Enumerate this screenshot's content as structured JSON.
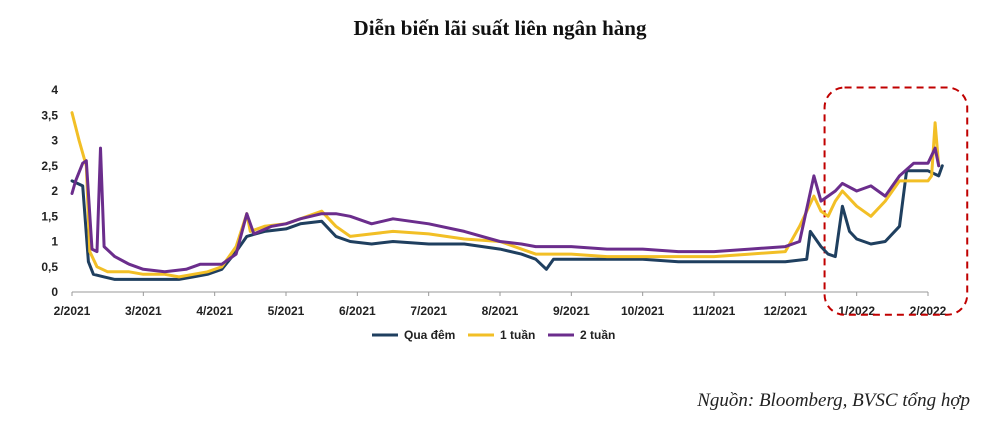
{
  "chart_data": {
    "type": "line",
    "title": "Diễn biến lãi suất liên ngân hàng",
    "xlabel": "",
    "ylabel": "",
    "ylim": [
      0,
      4
    ],
    "yticks": [
      "0",
      "0,5",
      "1",
      "1,5",
      "2",
      "2,5",
      "3",
      "3,5",
      "4"
    ],
    "xticks": [
      "2/2021",
      "3/2021",
      "4/2021",
      "5/2021",
      "6/2021",
      "7/2021",
      "8/2021",
      "9/2021",
      "10/2021",
      "11/2021",
      "12/2021",
      "1/2022",
      "2/2022"
    ],
    "grid": false,
    "legend_position": "bottom",
    "highlight": "dashed red rounded box around 1/2022–2/2022",
    "colors": {
      "Qua đêm": "#1f3f5f",
      "1 tuần": "#f2bf26",
      "2 tuần": "#6b2d8c",
      "highlight": "#c00000"
    },
    "series": [
      {
        "name": "Qua đêm",
        "values": [
          [
            0,
            2.2
          ],
          [
            0.15,
            2.1
          ],
          [
            0.23,
            0.6
          ],
          [
            0.3,
            0.35
          ],
          [
            0.45,
            0.3
          ],
          [
            0.6,
            0.25
          ],
          [
            1.0,
            0.25
          ],
          [
            1.5,
            0.25
          ],
          [
            1.7,
            0.3
          ],
          [
            1.9,
            0.35
          ],
          [
            2.1,
            0.45
          ],
          [
            2.3,
            0.8
          ],
          [
            2.45,
            1.1
          ],
          [
            2.7,
            1.2
          ],
          [
            3.0,
            1.25
          ],
          [
            3.2,
            1.35
          ],
          [
            3.5,
            1.4
          ],
          [
            3.7,
            1.1
          ],
          [
            3.9,
            1.0
          ],
          [
            4.2,
            0.95
          ],
          [
            4.5,
            1.0
          ],
          [
            5.0,
            0.95
          ],
          [
            5.5,
            0.95
          ],
          [
            6.0,
            0.85
          ],
          [
            6.3,
            0.75
          ],
          [
            6.5,
            0.65
          ],
          [
            6.65,
            0.45
          ],
          [
            6.75,
            0.65
          ],
          [
            7.0,
            0.65
          ],
          [
            7.5,
            0.65
          ],
          [
            8.0,
            0.65
          ],
          [
            8.5,
            0.6
          ],
          [
            9.0,
            0.6
          ],
          [
            9.5,
            0.6
          ],
          [
            10.0,
            0.6
          ],
          [
            10.3,
            0.65
          ],
          [
            10.35,
            1.2
          ],
          [
            10.5,
            0.9
          ],
          [
            10.6,
            0.75
          ],
          [
            10.7,
            0.7
          ],
          [
            10.8,
            1.7
          ],
          [
            10.9,
            1.2
          ],
          [
            11.0,
            1.05
          ],
          [
            11.2,
            0.95
          ],
          [
            11.4,
            1.0
          ],
          [
            11.6,
            1.3
          ],
          [
            11.7,
            2.4
          ],
          [
            12.0,
            2.4
          ],
          [
            12.15,
            2.3
          ],
          [
            12.2,
            2.5
          ]
        ]
      },
      {
        "name": "1 tuần",
        "values": [
          [
            0,
            3.55
          ],
          [
            0.1,
            3.0
          ],
          [
            0.2,
            2.5
          ],
          [
            0.25,
            0.8
          ],
          [
            0.35,
            0.5
          ],
          [
            0.5,
            0.4
          ],
          [
            0.8,
            0.4
          ],
          [
            1.0,
            0.35
          ],
          [
            1.3,
            0.35
          ],
          [
            1.5,
            0.3
          ],
          [
            1.7,
            0.35
          ],
          [
            1.9,
            0.4
          ],
          [
            2.1,
            0.5
          ],
          [
            2.3,
            0.9
          ],
          [
            2.45,
            1.55
          ],
          [
            2.5,
            1.2
          ],
          [
            2.7,
            1.3
          ],
          [
            3.0,
            1.35
          ],
          [
            3.2,
            1.45
          ],
          [
            3.5,
            1.6
          ],
          [
            3.7,
            1.3
          ],
          [
            3.9,
            1.1
          ],
          [
            4.2,
            1.15
          ],
          [
            4.5,
            1.2
          ],
          [
            5.0,
            1.15
          ],
          [
            5.5,
            1.05
          ],
          [
            6.0,
            1.0
          ],
          [
            6.3,
            0.85
          ],
          [
            6.5,
            0.75
          ],
          [
            7.0,
            0.75
          ],
          [
            7.5,
            0.7
          ],
          [
            8.0,
            0.7
          ],
          [
            8.5,
            0.7
          ],
          [
            9.0,
            0.7
          ],
          [
            9.5,
            0.75
          ],
          [
            10.0,
            0.8
          ],
          [
            10.2,
            1.3
          ],
          [
            10.4,
            1.9
          ],
          [
            10.5,
            1.6
          ],
          [
            10.6,
            1.5
          ],
          [
            10.7,
            1.8
          ],
          [
            10.8,
            2.0
          ],
          [
            11.0,
            1.7
          ],
          [
            11.2,
            1.5
          ],
          [
            11.4,
            1.8
          ],
          [
            11.6,
            2.2
          ],
          [
            11.8,
            2.2
          ],
          [
            12.0,
            2.2
          ],
          [
            12.05,
            2.3
          ],
          [
            12.1,
            3.35
          ],
          [
            12.15,
            2.5
          ]
        ]
      },
      {
        "name": "2 tuần",
        "values": [
          [
            0,
            1.95
          ],
          [
            0.05,
            2.2
          ],
          [
            0.15,
            2.55
          ],
          [
            0.2,
            2.6
          ],
          [
            0.28,
            0.85
          ],
          [
            0.35,
            0.8
          ],
          [
            0.4,
            2.85
          ],
          [
            0.45,
            0.9
          ],
          [
            0.6,
            0.7
          ],
          [
            0.8,
            0.55
          ],
          [
            1.0,
            0.45
          ],
          [
            1.3,
            0.4
          ],
          [
            1.6,
            0.45
          ],
          [
            1.8,
            0.55
          ],
          [
            2.1,
            0.55
          ],
          [
            2.3,
            0.75
          ],
          [
            2.45,
            1.55
          ],
          [
            2.55,
            1.15
          ],
          [
            2.8,
            1.3
          ],
          [
            3.0,
            1.35
          ],
          [
            3.2,
            1.45
          ],
          [
            3.5,
            1.55
          ],
          [
            3.7,
            1.55
          ],
          [
            3.9,
            1.5
          ],
          [
            4.2,
            1.35
          ],
          [
            4.5,
            1.45
          ],
          [
            5.0,
            1.35
          ],
          [
            5.5,
            1.2
          ],
          [
            6.0,
            1.0
          ],
          [
            6.3,
            0.95
          ],
          [
            6.5,
            0.9
          ],
          [
            7.0,
            0.9
          ],
          [
            7.5,
            0.85
          ],
          [
            8.0,
            0.85
          ],
          [
            8.5,
            0.8
          ],
          [
            9.0,
            0.8
          ],
          [
            9.5,
            0.85
          ],
          [
            10.0,
            0.9
          ],
          [
            10.2,
            1.0
          ],
          [
            10.4,
            2.3
          ],
          [
            10.5,
            1.8
          ],
          [
            10.7,
            2.0
          ],
          [
            10.8,
            2.15
          ],
          [
            11.0,
            2.0
          ],
          [
            11.2,
            2.1
          ],
          [
            11.4,
            1.9
          ],
          [
            11.6,
            2.3
          ],
          [
            11.8,
            2.55
          ],
          [
            12.0,
            2.55
          ],
          [
            12.1,
            2.85
          ],
          [
            12.15,
            2.5
          ]
        ]
      }
    ]
  },
  "source": "Nguồn: Bloomberg, BVSC tổng hợp"
}
